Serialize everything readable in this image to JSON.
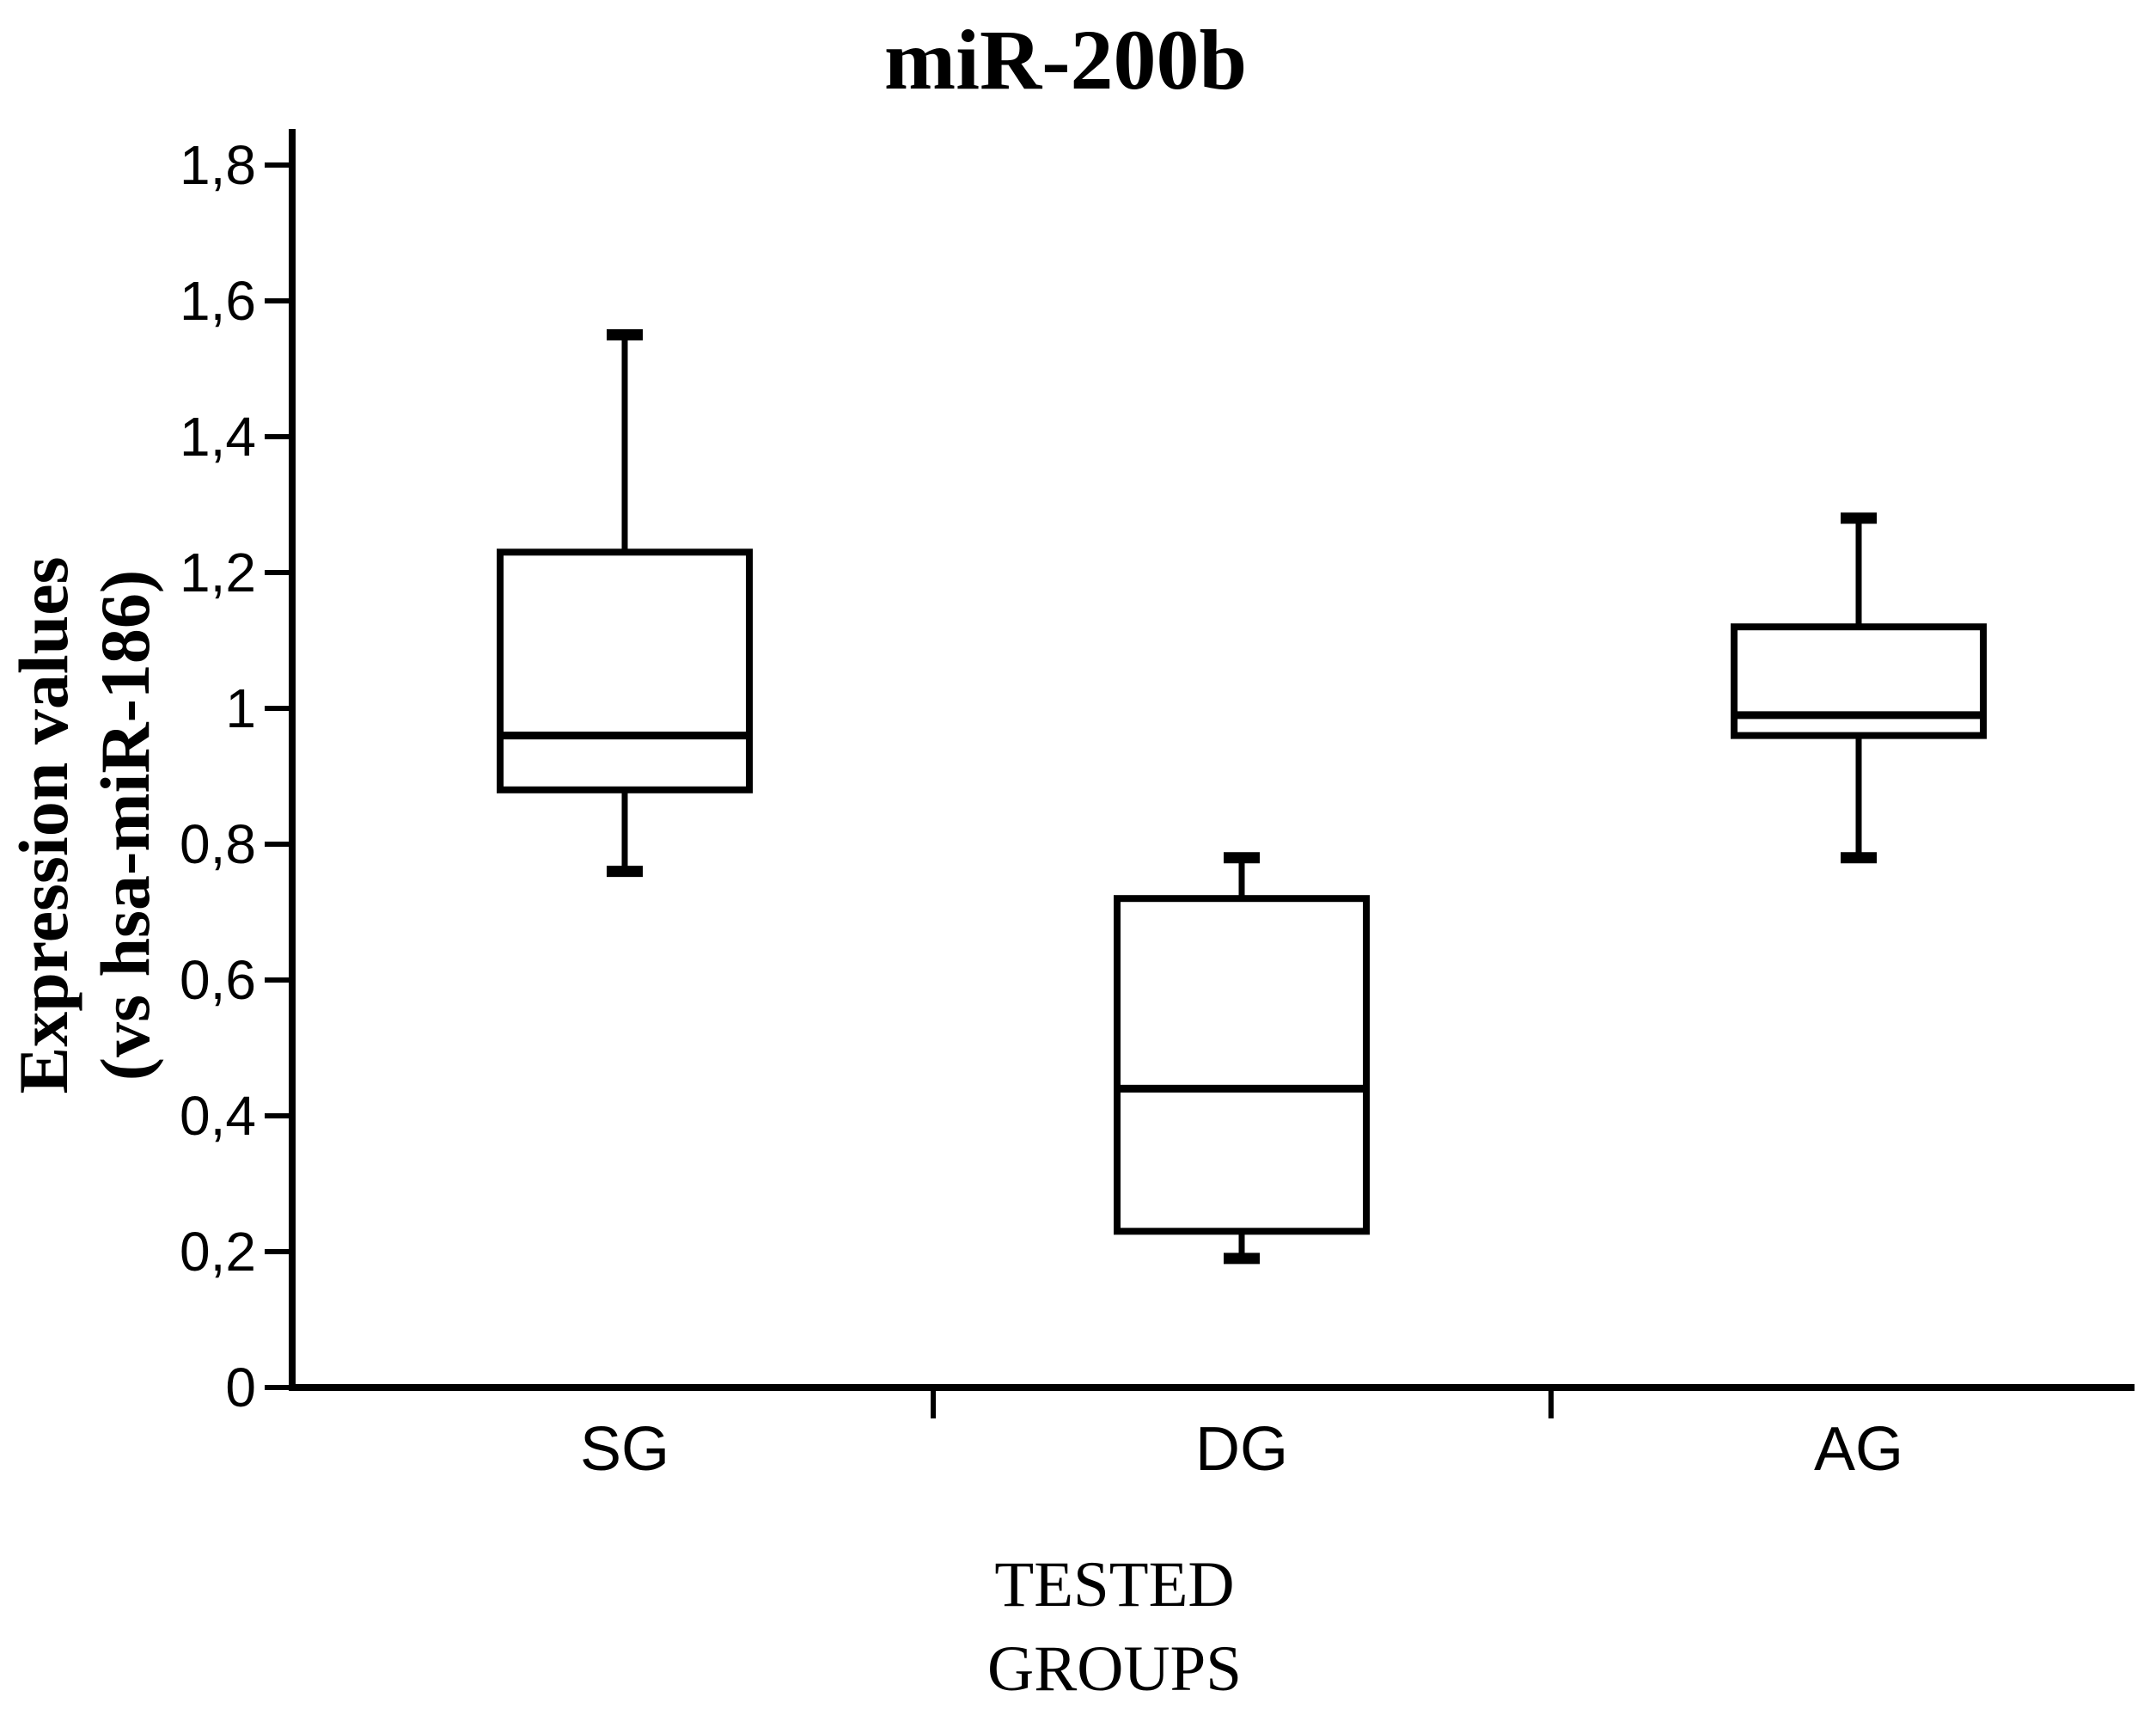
{
  "chart_data": {
    "type": "box",
    "title": "miR-200b",
    "ylabel_line1": "Expression values",
    "ylabel_line2": "(vs hsa-miR-186)",
    "xlabel_line1": "TESTED",
    "xlabel_line2": "GROUPS",
    "categories": [
      "SG",
      "DG",
      "AG"
    ],
    "series": [
      {
        "name": "SG",
        "whisker_low": 0.76,
        "q1": 0.88,
        "median": 0.96,
        "q3": 1.23,
        "whisker_high": 1.55
      },
      {
        "name": "DG",
        "whisker_low": 0.19,
        "q1": 0.23,
        "median": 0.44,
        "q3": 0.72,
        "whisker_high": 0.78
      },
      {
        "name": "AG",
        "whisker_low": 0.78,
        "q1": 0.96,
        "median": 0.99,
        "q3": 1.12,
        "whisker_high": 1.28
      }
    ],
    "ylim": [
      0,
      1.8
    ],
    "ytick_step": 0.2,
    "ytick_labels": [
      "0",
      "0,2",
      "0,4",
      "0,6",
      "0,8",
      "1",
      "1,2",
      "1,4",
      "1,6",
      "1,8"
    ],
    "decimal_separator": ",",
    "grid": false,
    "legend": "none",
    "box_fill": "#ffffff",
    "stroke_color": "#000000"
  }
}
